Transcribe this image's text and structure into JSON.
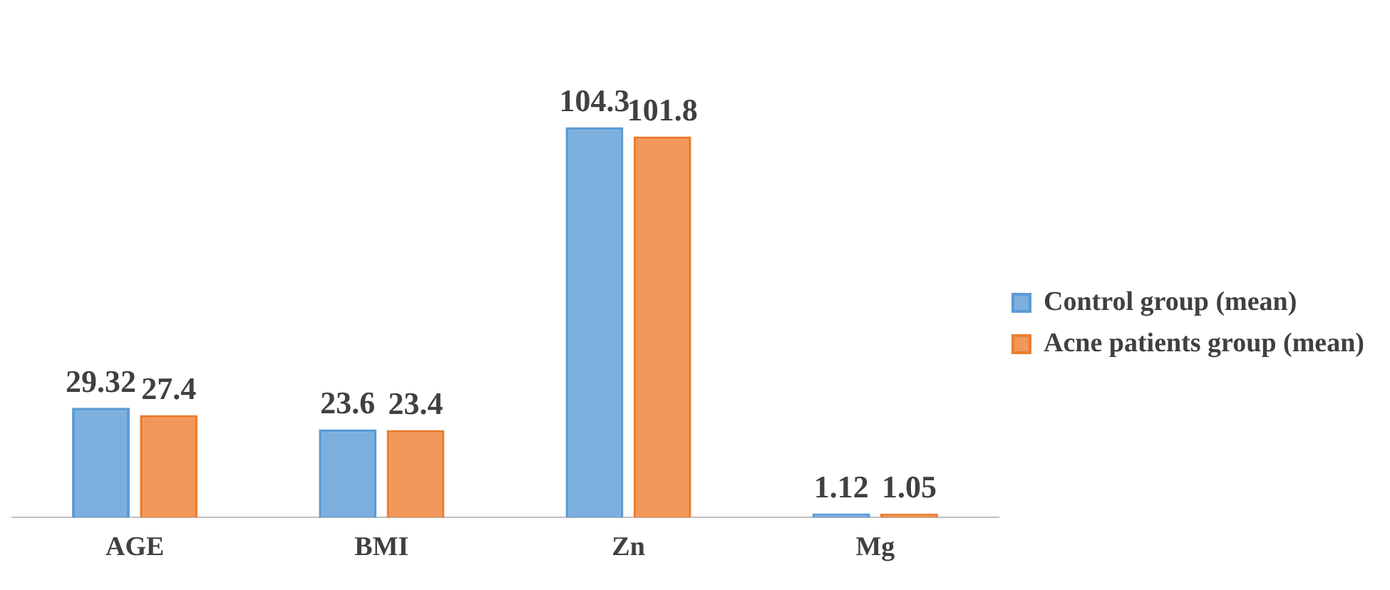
{
  "chart_data": {
    "type": "bar",
    "categories": [
      "AGE",
      "BMI",
      "Zn",
      "Mg"
    ],
    "series": [
      {
        "name": "Control group (mean)",
        "color": "#5b9bd5",
        "values": [
          29.32,
          23.6,
          104.3,
          1.12
        ]
      },
      {
        "name": "Acne patients group (mean)",
        "color": "#ed7d31",
        "values": [
          27.4,
          23.4,
          101.8,
          1.05
        ]
      }
    ],
    "data_labels": true,
    "legend": "right",
    "grid": false,
    "tick_labels": "x"
  }
}
